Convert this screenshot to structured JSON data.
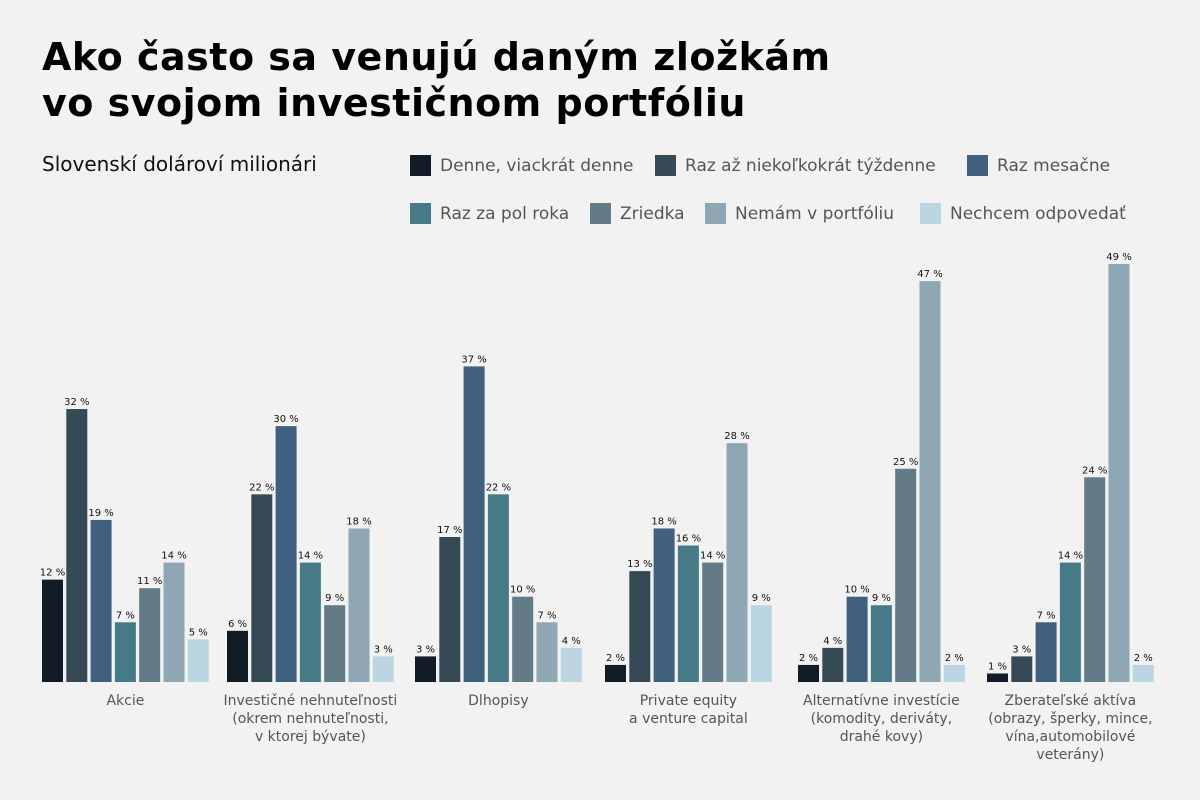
{
  "chart_data": {
    "type": "bar",
    "title": "Ako často sa venujú daným zložkám vo svojom investičnom portfóliu",
    "title_lines": [
      "Ako často sa venujú daným zložkám",
      "vo svojom investičnom portfóliu"
    ],
    "subtitle": "Slovenskí dolároví milionári",
    "categories": [
      "Akcie",
      "Investičné nehnuteľnosti (okrem nehnuteľnosti, v ktorej bývate)",
      "Dlhopisy",
      "Private equity a venture capital",
      "Alternatívne investície (komodity, deriváty, drahé kovy)",
      "Zberateľské aktíva (obrazy, šperky, mince, vína,automobilové veterány)"
    ],
    "category_lines": [
      [
        "Akcie"
      ],
      [
        "Investičné nehnuteľnosti",
        "(okrem nehnuteľnosti,",
        "v ktorej bývate)"
      ],
      [
        "Dlhopisy"
      ],
      [
        "Private equity",
        "a venture capital"
      ],
      [
        "Alternatívne investície",
        "(komodity, deriváty,",
        "drahé kovy)"
      ],
      [
        "Zberateľské aktíva",
        "(obrazy, šperky, mince,",
        "vína,automobilové",
        "veterány)"
      ]
    ],
    "series": [
      {
        "name": "Denne, viackrát denne",
        "color": "#111c26",
        "values": [
          12,
          6,
          3,
          2,
          2,
          1
        ]
      },
      {
        "name": "Raz až niekoľkokrát týždenne",
        "color": "#364a55",
        "values": [
          32,
          22,
          17,
          13,
          4,
          3
        ]
      },
      {
        "name": "Raz mesačne",
        "color": "#41607f",
        "values": [
          19,
          30,
          37,
          18,
          10,
          7
        ]
      },
      {
        "name": "Raz za pol roka",
        "color": "#477a87",
        "values": [
          7,
          14,
          22,
          16,
          9,
          14
        ]
      },
      {
        "name": "Zriedka",
        "color": "#637b87",
        "values": [
          11,
          9,
          10,
          14,
          25,
          24
        ]
      },
      {
        "name": "Nemám v portfóliu",
        "color": "#8fa7b5",
        "values": [
          14,
          18,
          7,
          28,
          47,
          49
        ]
      },
      {
        "name": "Nechcem odpovedať",
        "color": "#bcd6e1",
        "values": [
          5,
          3,
          4,
          9,
          2,
          2
        ]
      }
    ],
    "value_suffix": " %",
    "ylim": [
      0,
      50
    ],
    "grid": false,
    "legend_position": "top-right"
  }
}
